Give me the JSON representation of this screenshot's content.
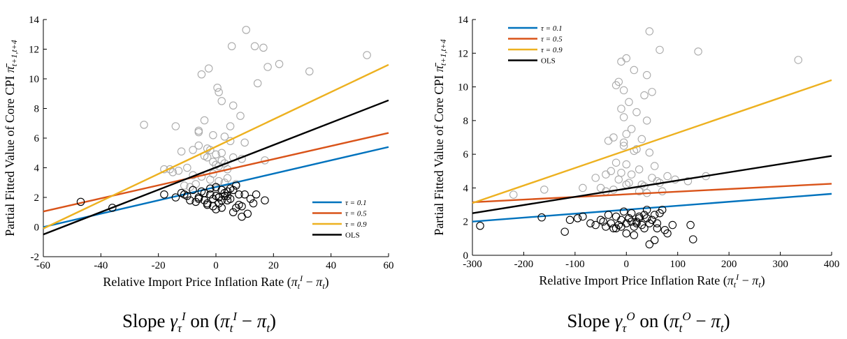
{
  "chart_data": [
    {
      "type": "scatter",
      "xlabel": "Relative Import Price Inflation Rate (π_t^I − π_t)",
      "ylabel": "Partial Fitted Value of Core CPI π̄_{t+1,t+4}",
      "caption": "Slope γ_τ^I on (π_t^I − π_t)",
      "xlim": [
        -60,
        60
      ],
      "ylim": [
        -2,
        14
      ],
      "xticks": [
        "-60",
        "-40",
        "-20",
        "0",
        "20",
        "40",
        "60"
      ],
      "yticks": [
        "-2",
        "0",
        "2",
        "4",
        "6",
        "8",
        "10",
        "12",
        "14"
      ],
      "legend_position": "bottom-right",
      "series": [
        {
          "name": "τ = 0.1",
          "type": "line",
          "color": "#0072BD",
          "x": [
            -60,
            60
          ],
          "y": [
            0.0,
            5.4
          ]
        },
        {
          "name": "τ = 0.5",
          "type": "line",
          "color": "#D95319",
          "x": [
            -60,
            60
          ],
          "y": [
            1.05,
            6.35
          ]
        },
        {
          "name": "τ = 0.9",
          "type": "line",
          "color": "#EDB120",
          "x": [
            -60,
            60
          ],
          "y": [
            -0.1,
            10.95
          ]
        },
        {
          "name": "OLS",
          "type": "line",
          "color": "#000000",
          "x": [
            -60,
            60
          ],
          "y": [
            -0.5,
            8.55
          ]
        }
      ],
      "scatter_gray": {
        "color": "#aaaaaa",
        "x": [
          10.5,
          13.5,
          5.5,
          16.5,
          22,
          32.5,
          52.5,
          -2.5,
          0.5,
          18,
          14.5,
          -5,
          1,
          2,
          6,
          8.5,
          -4,
          -6,
          5,
          -1,
          -14,
          3,
          10,
          -25,
          -6,
          -3,
          -8,
          -12,
          2,
          6,
          9,
          17,
          -3,
          -1,
          0,
          1,
          -16,
          -10,
          -13,
          -18,
          -8,
          -5,
          4,
          -2,
          1,
          3,
          7,
          -7,
          -11,
          -9,
          0,
          2,
          -4,
          5,
          -6,
          -1,
          -15,
          0,
          3,
          4,
          -2
        ],
        "y": [
          13.3,
          12.2,
          12.2,
          12.1,
          11.0,
          10.5,
          11.6,
          10.7,
          9.4,
          10.8,
          9.7,
          10.3,
          9.1,
          8.5,
          8.2,
          7.5,
          7.2,
          6.5,
          6.8,
          6.2,
          6.8,
          6.1,
          5.7,
          6.9,
          5.5,
          5.3,
          5.2,
          5.1,
          5.0,
          4.7,
          4.6,
          4.5,
          4.7,
          4.4,
          4.2,
          4.1,
          3.9,
          4.0,
          3.8,
          3.9,
          3.5,
          3.4,
          3.3,
          3.2,
          3.1,
          3.0,
          2.9,
          2.9,
          2.8,
          2.7,
          2.6,
          4.5,
          4.8,
          5.8,
          6.4,
          3.6,
          3.7,
          4.9,
          4.3,
          3.9,
          5.2
        ]
      },
      "scatter_black": {
        "color": "#000000",
        "x": [
          -47,
          -36,
          -18,
          -14,
          -12,
          -10,
          -9,
          -7,
          -6,
          -5,
          -4,
          -3,
          -2,
          -1,
          0,
          1,
          2,
          3,
          4,
          5,
          6,
          7,
          8,
          9,
          10,
          12,
          14,
          17,
          -8,
          -3,
          0,
          2,
          4,
          6,
          8,
          -2,
          1,
          3,
          5,
          -11,
          -6,
          0,
          7,
          11,
          13,
          -4,
          2,
          9,
          1,
          -1,
          4
        ],
        "y": [
          1.7,
          1.3,
          2.2,
          2.0,
          2.3,
          2.1,
          1.8,
          1.7,
          1.9,
          2.4,
          1.8,
          1.6,
          2.2,
          1.9,
          2.1,
          2.0,
          1.8,
          2.3,
          2.4,
          2.6,
          2.5,
          2.8,
          2.2,
          1.4,
          2.2,
          1.9,
          2.2,
          1.8,
          2.5,
          1.5,
          1.2,
          1.3,
          1.8,
          1.0,
          1.5,
          2.6,
          1.6,
          2.1,
          1.9,
          2.2,
          2.0,
          2.7,
          1.3,
          0.9,
          1.6,
          2.3,
          2.5,
          0.7,
          2.0,
          1.4,
          2.1
        ]
      },
      "legend": [
        {
          "label": "τ = 0.1",
          "color": "#0072BD"
        },
        {
          "label": "τ = 0.5",
          "color": "#D95319"
        },
        {
          "label": "τ = 0.9",
          "color": "#EDB120"
        },
        {
          "label": "OLS",
          "color": "#000000"
        }
      ]
    },
    {
      "type": "scatter",
      "xlabel": "Relative Import Price Inflation Rate (π_t^I − π_t)",
      "ylabel": "Partial Fitted Value of Core CPI π̄_{t+1,t+4}",
      "caption": "Slope γ_τ^O on (π_t^O − π_t)",
      "xlim": [
        -300,
        400
      ],
      "ylim": [
        0,
        14
      ],
      "xticks": [
        "-300",
        "-200",
        "-100",
        "0",
        "100",
        "200",
        "300",
        "400"
      ],
      "yticks": [
        "0",
        "2",
        "4",
        "6",
        "8",
        "10",
        "12",
        "14"
      ],
      "legend_position": "top-left",
      "series": [
        {
          "name": "τ = 0.1",
          "type": "line",
          "color": "#0072BD",
          "x": [
            -300,
            400
          ],
          "y": [
            2.0,
            3.65
          ]
        },
        {
          "name": "τ = 0.5",
          "type": "line",
          "color": "#D95319",
          "x": [
            -300,
            400
          ],
          "y": [
            3.15,
            4.25
          ]
        },
        {
          "name": "τ = 0.9",
          "type": "line",
          "color": "#EDB120",
          "x": [
            -300,
            400
          ],
          "y": [
            3.1,
            10.4
          ]
        },
        {
          "name": "OLS",
          "type": "line",
          "color": "#000000",
          "x": [
            -300,
            400
          ],
          "y": [
            2.5,
            5.9
          ]
        }
      ],
      "scatter_gray": {
        "color": "#aaaaaa",
        "x": [
          45,
          140,
          65,
          335,
          -10,
          0,
          -15,
          15,
          40,
          50,
          -20,
          -5,
          5,
          35,
          -10,
          20,
          40,
          -5,
          10,
          -25,
          0,
          30,
          -35,
          -5,
          20,
          45,
          -20,
          0,
          25,
          -30,
          10,
          50,
          -15,
          -40,
          -60,
          30,
          60,
          80,
          155,
          -220,
          -160,
          -85,
          -40,
          -25,
          5,
          35,
          70,
          95,
          120,
          -5,
          15,
          55,
          -50,
          -10,
          0,
          25,
          40,
          65
        ],
        "y": [
          13.3,
          12.1,
          12.2,
          11.6,
          11.5,
          11.7,
          10.3,
          11.0,
          10.7,
          9.7,
          10.1,
          9.8,
          9.1,
          9.5,
          8.7,
          8.5,
          8.0,
          8.2,
          7.5,
          7.0,
          7.2,
          6.9,
          6.8,
          6.7,
          6.3,
          6.1,
          5.5,
          5.4,
          5.1,
          5.0,
          4.8,
          4.6,
          4.5,
          4.8,
          4.6,
          4.2,
          4.4,
          4.7,
          4.7,
          3.6,
          3.9,
          4.0,
          3.8,
          3.9,
          4.3,
          4.1,
          3.8,
          4.5,
          4.4,
          6.5,
          6.2,
          5.3,
          4.0,
          4.9,
          4.2,
          3.8,
          3.7,
          4.3
        ]
      },
      "scatter_black": {
        "color": "#000000",
        "x": [
          -285,
          -165,
          -120,
          -110,
          -95,
          -85,
          -60,
          -50,
          -40,
          -35,
          -30,
          -25,
          -20,
          -15,
          -10,
          -5,
          0,
          5,
          10,
          15,
          20,
          25,
          30,
          35,
          40,
          45,
          50,
          55,
          60,
          70,
          75,
          80,
          90,
          125,
          130,
          -70,
          -45,
          -20,
          0,
          15,
          35,
          55,
          65,
          40,
          10,
          -10,
          25,
          45,
          5,
          60,
          20
        ],
        "y": [
          1.75,
          2.25,
          1.4,
          2.1,
          2.2,
          2.3,
          1.8,
          2.1,
          1.7,
          2.4,
          1.9,
          1.6,
          2.3,
          1.8,
          2.1,
          2.6,
          1.9,
          2.2,
          2.5,
          1.7,
          1.9,
          2.2,
          1.8,
          2.4,
          2.2,
          0.65,
          2.1,
          0.9,
          1.9,
          2.7,
          1.5,
          1.3,
          1.8,
          1.8,
          0.95,
          1.9,
          2.0,
          1.6,
          1.3,
          1.2,
          1.6,
          2.4,
          2.5,
          2.7,
          2.0,
          1.7,
          2.3,
          1.9,
          2.2,
          1.6,
          2.0
        ]
      },
      "legend": [
        {
          "label": "τ = 0.1",
          "color": "#0072BD"
        },
        {
          "label": "τ = 0.5",
          "color": "#D95319"
        },
        {
          "label": "τ = 0.9",
          "color": "#EDB120"
        },
        {
          "label": "OLS",
          "color": "#000000"
        }
      ]
    }
  ]
}
